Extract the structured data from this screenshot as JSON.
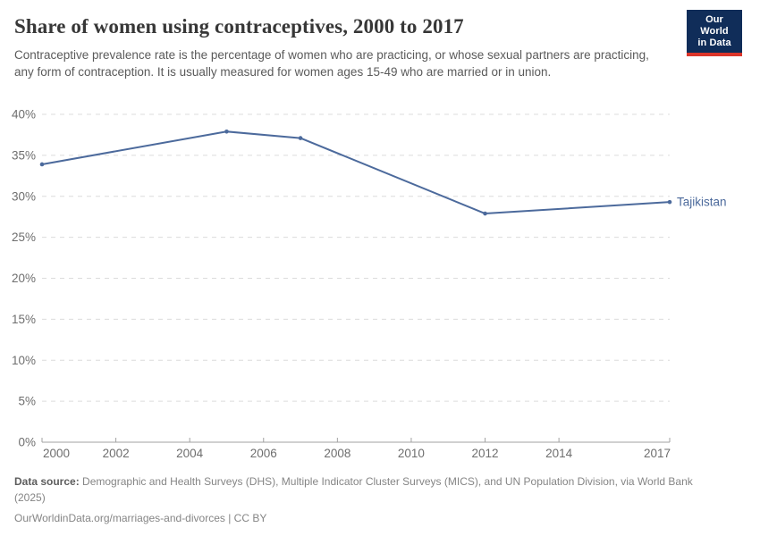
{
  "header": {
    "title": "Share of women using contraceptives, 2000 to 2017",
    "subtitle": "Contraceptive prevalence rate is the percentage of women who are practicing, or whose sexual partners are practicing, any form of contraception. It is usually measured for women ages 15-49 who are married or in union.",
    "logo": {
      "line1": "Our World",
      "line2": "in Data"
    }
  },
  "chart_data": {
    "type": "line",
    "title": "Share of women using contraceptives, 2000 to 2017",
    "x": [
      2000,
      2005,
      2007,
      2012,
      2017
    ],
    "series": [
      {
        "name": "Tajikistan",
        "values": [
          33.9,
          37.9,
          37.1,
          27.9,
          29.3
        ],
        "color": "#4c6a9c"
      }
    ],
    "x_ticks": [
      2000,
      2002,
      2004,
      2006,
      2008,
      2010,
      2012,
      2014,
      2017
    ],
    "y_ticks": [
      0,
      5,
      10,
      15,
      20,
      25,
      30,
      35,
      40
    ],
    "y_tick_suffix": "%",
    "xlim": [
      2000,
      2017
    ],
    "ylim": [
      0,
      40
    ],
    "grid": "horizontal-dashed",
    "legend_position": "line-end-label"
  },
  "footer": {
    "datasource_label": "Data source:",
    "datasource_text": " Demographic and Health Surveys (DHS), Multiple Indicator Cluster Surveys (MICS), and UN Population Division, via World Bank (2025)",
    "url_line": "OurWorldinData.org/marriages-and-divorces | CC BY"
  },
  "colors": {
    "line": "#4c6a9c",
    "gridline": "#dcdcdc",
    "axis": "#a2a2a2",
    "tick_label": "#6e6e6e",
    "logo_bg": "#102d59",
    "logo_accent": "#dc352a"
  }
}
